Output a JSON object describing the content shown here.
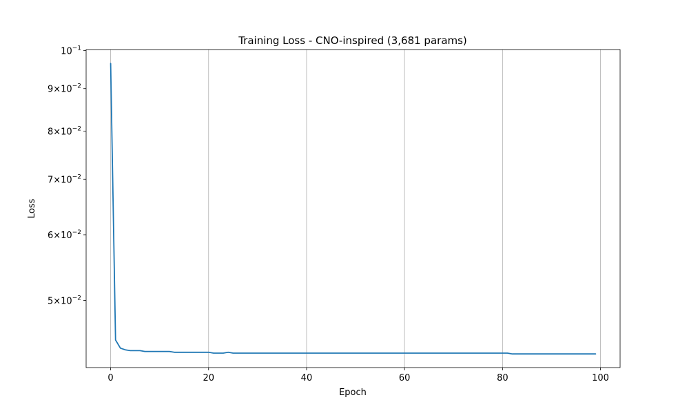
{
  "chart_data": {
    "type": "line",
    "title": "Training Loss - CNO-inspired (3,681 params)",
    "xlabel": "Epoch",
    "ylabel": "Loss",
    "yscale": "log",
    "xlim": [
      -5,
      104
    ],
    "ylim": [
      0.0415,
      0.1003
    ],
    "grid": "x-major",
    "line_color": "#1f77b4",
    "x_ticks": [
      {
        "value": 0,
        "label": "0"
      },
      {
        "value": 20,
        "label": "20"
      },
      {
        "value": 40,
        "label": "40"
      },
      {
        "value": 60,
        "label": "60"
      },
      {
        "value": 80,
        "label": "80"
      },
      {
        "value": 100,
        "label": "100"
      }
    ],
    "y_ticks": [
      {
        "value": 0.1,
        "mant": "10",
        "exp": "−1"
      },
      {
        "value": 0.09,
        "mant": "9×10",
        "exp": "−2"
      },
      {
        "value": 0.08,
        "mant": "8×10",
        "exp": "−2"
      },
      {
        "value": 0.07,
        "mant": "7×10",
        "exp": "−2"
      },
      {
        "value": 0.06,
        "mant": "6×10",
        "exp": "−2"
      },
      {
        "value": 0.05,
        "mant": "5×10",
        "exp": "−2"
      }
    ],
    "series": [
      {
        "x": [
          0,
          1,
          2,
          3,
          4,
          5,
          6,
          7,
          8,
          9,
          10,
          11,
          12,
          13,
          14,
          15,
          16,
          17,
          18,
          19,
          20,
          21,
          22,
          23,
          24,
          25,
          26,
          27,
          28,
          29,
          30,
          31,
          32,
          33,
          34,
          35,
          36,
          37,
          38,
          39,
          40,
          41,
          42,
          43,
          44,
          45,
          46,
          47,
          48,
          49,
          50,
          51,
          52,
          53,
          54,
          55,
          56,
          57,
          58,
          59,
          60,
          61,
          62,
          63,
          64,
          65,
          66,
          67,
          68,
          69,
          70,
          71,
          72,
          73,
          74,
          75,
          76,
          77,
          78,
          79,
          80,
          81,
          82,
          83,
          84,
          85,
          86,
          87,
          88,
          89,
          90,
          91,
          92,
          93,
          94,
          95,
          96,
          97,
          98,
          99
        ],
        "y": [
          0.0965,
          0.0448,
          0.0438,
          0.0436,
          0.0435,
          0.0435,
          0.0435,
          0.0434,
          0.0434,
          0.0434,
          0.0434,
          0.0434,
          0.0434,
          0.0433,
          0.0433,
          0.0433,
          0.0433,
          0.0433,
          0.0433,
          0.0433,
          0.0433,
          0.0432,
          0.0432,
          0.0432,
          0.0433,
          0.0432,
          0.0432,
          0.0432,
          0.0432,
          0.0432,
          0.0432,
          0.0432,
          0.0432,
          0.0432,
          0.0432,
          0.0432,
          0.0432,
          0.0432,
          0.0432,
          0.0432,
          0.0432,
          0.0432,
          0.0432,
          0.0432,
          0.0432,
          0.0432,
          0.0432,
          0.0432,
          0.0432,
          0.0432,
          0.0432,
          0.0432,
          0.0432,
          0.0432,
          0.0432,
          0.0432,
          0.0432,
          0.0432,
          0.0432,
          0.0432,
          0.0432,
          0.0432,
          0.0432,
          0.0432,
          0.0432,
          0.0432,
          0.0432,
          0.0432,
          0.0432,
          0.0432,
          0.0432,
          0.0432,
          0.0432,
          0.0432,
          0.0432,
          0.0432,
          0.0432,
          0.0432,
          0.0432,
          0.0432,
          0.0432,
          0.0432,
          0.0431,
          0.0431,
          0.0431,
          0.0431,
          0.0431,
          0.0431,
          0.0431,
          0.0431,
          0.0431,
          0.0431,
          0.0431,
          0.0431,
          0.0431,
          0.0431,
          0.0431,
          0.0431,
          0.0431,
          0.0431
        ]
      }
    ]
  }
}
